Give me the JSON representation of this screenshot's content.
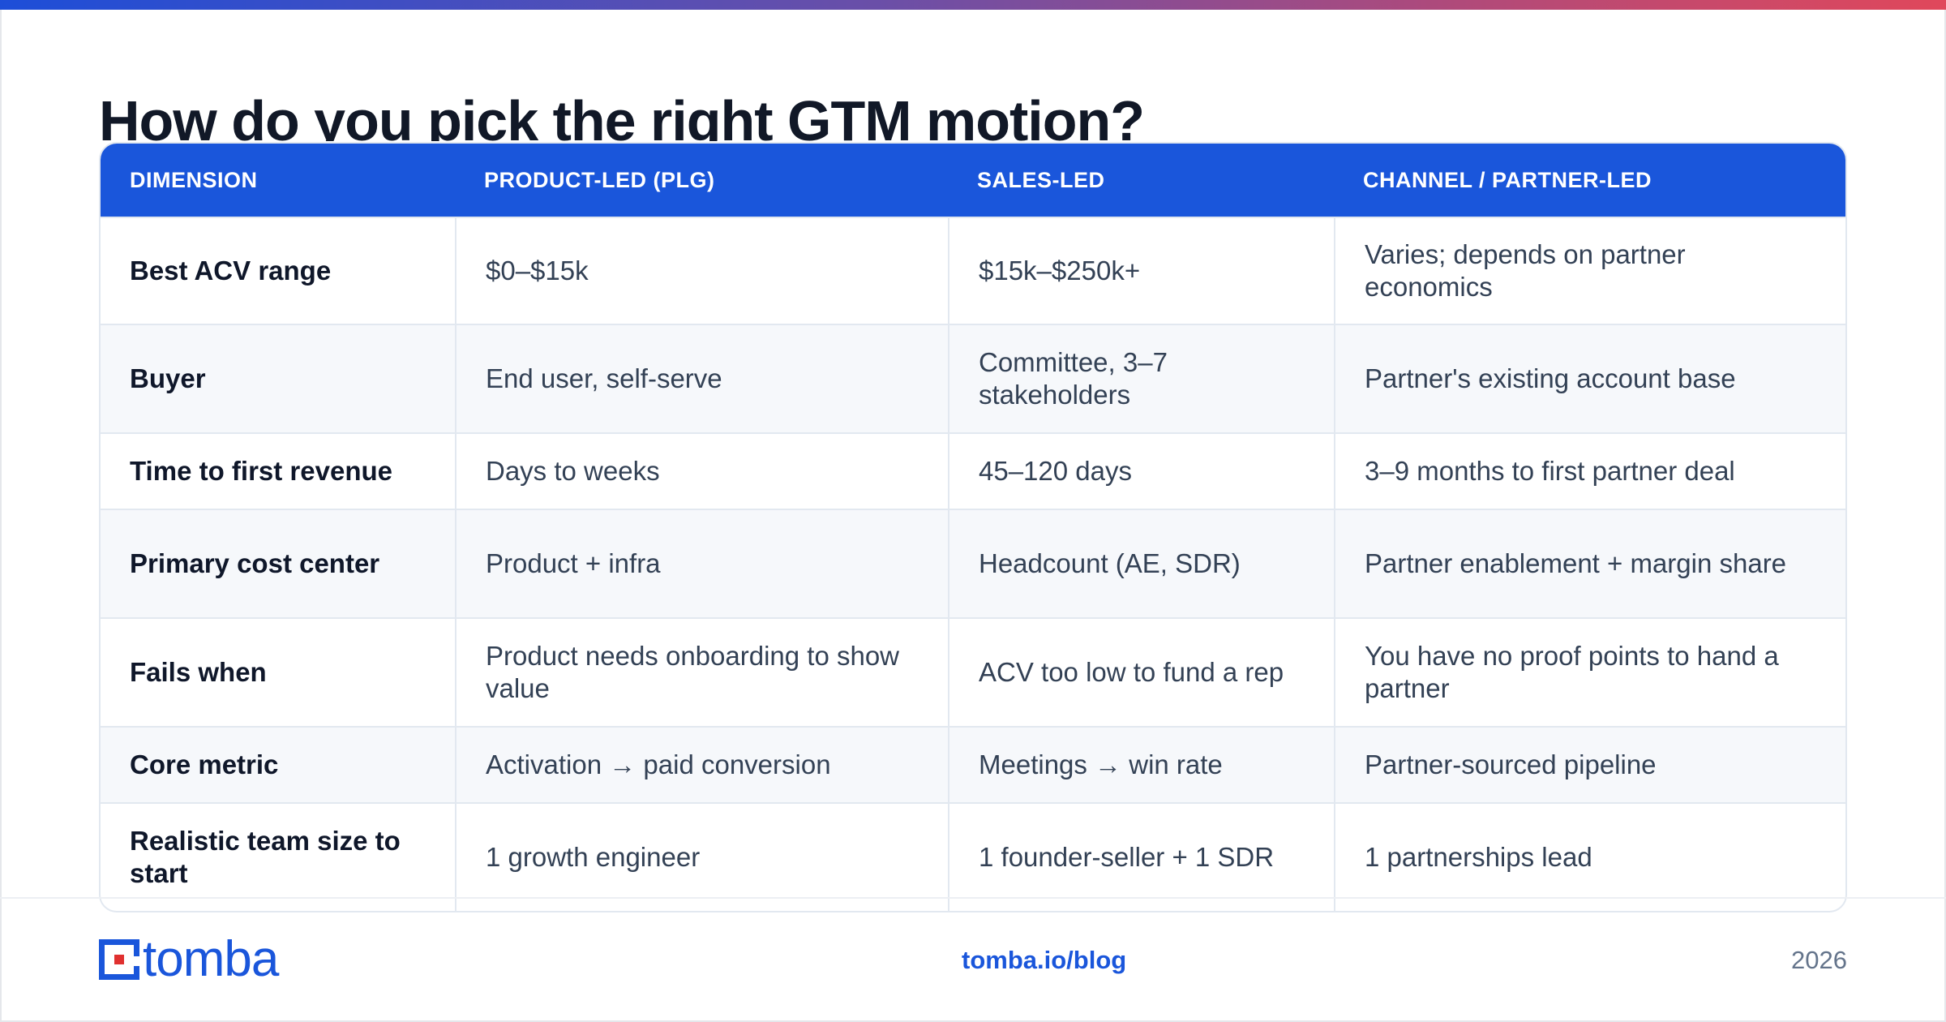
{
  "colors": {
    "accent": "#1a56db",
    "logo_red": "#e0302f",
    "title": "#111827"
  },
  "title": "How do you pick the right GTM motion?",
  "table": {
    "headers": [
      "DIMENSION",
      "PRODUCT-LED (PLG)",
      "SALES-LED",
      "CHANNEL / PARTNER-LED"
    ],
    "rows": [
      [
        "Best ACV range",
        "$0–$15k",
        "$15k–$250k+",
        "Varies; depends on partner economics"
      ],
      [
        "Buyer",
        "End user, self-serve",
        "Committee, 3–7 stakeholders",
        "Partner's existing account base"
      ],
      [
        "Time to first revenue",
        "Days to weeks",
        "45–120 days",
        "3–9 months to first partner deal"
      ],
      [
        "Primary cost center",
        "Product + infra",
        "Headcount (AE, SDR)",
        "Partner enablement + margin share"
      ],
      [
        "Fails when",
        "Product needs onboarding to show value",
        "ACV too low to fund a rep",
        "You have no proof points to hand a partner"
      ],
      [
        "Core metric",
        "Activation → paid conversion",
        "Meetings → win rate",
        "Partner-sourced pipeline"
      ],
      [
        "Realistic team size to start",
        "1 growth engineer",
        "1 founder-seller + 1 SDR",
        "1 partnerships lead"
      ]
    ]
  },
  "footer": {
    "logo_text": "tomba",
    "link": "tomba.io/blog",
    "year": "2026"
  }
}
